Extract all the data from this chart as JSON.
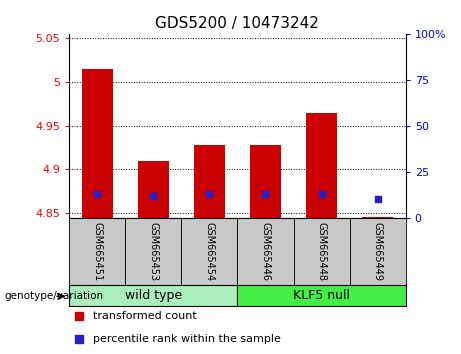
{
  "title": "GDS5200 / 10473242",
  "samples": [
    "GSM665451",
    "GSM665453",
    "GSM665454",
    "GSM665446",
    "GSM665448",
    "GSM665449"
  ],
  "bar_bottom": 4.845,
  "transformed_counts": [
    5.015,
    4.91,
    4.928,
    4.928,
    4.965,
    4.846
  ],
  "percentile_ranks": [
    13,
    12,
    13,
    13,
    13,
    10
  ],
  "ylim": [
    4.845,
    5.055
  ],
  "yticks": [
    4.85,
    4.9,
    4.95,
    5.0,
    5.05
  ],
  "ytick_labels": [
    "4.85",
    "4.9",
    "4.95",
    "5",
    "5.05"
  ],
  "right_ylim": [
    0,
    100
  ],
  "right_yticks": [
    0,
    25,
    50,
    75,
    100
  ],
  "right_ytick_labels": [
    "0",
    "25",
    "50",
    "75",
    "100%"
  ],
  "bar_color": "#CC0000",
  "dot_color": "#2222CC",
  "bar_width": 0.55,
  "title_fontsize": 11,
  "tick_fontsize": 8,
  "sample_fontsize": 7,
  "group_fontsize": 9,
  "legend_fontsize": 8,
  "group_info": [
    {
      "name": "wild type",
      "start": 0,
      "end": 2,
      "color": "#AAEEBB"
    },
    {
      "name": "KLF5 null",
      "start": 3,
      "end": 5,
      "color": "#44EE44"
    }
  ],
  "genotype_label": "genotype/variation",
  "legend_labels": [
    "transformed count",
    "percentile rank within the sample"
  ],
  "legend_colors": [
    "#CC0000",
    "#2222CC"
  ],
  "sample_bg_color": "#C8C8C8"
}
